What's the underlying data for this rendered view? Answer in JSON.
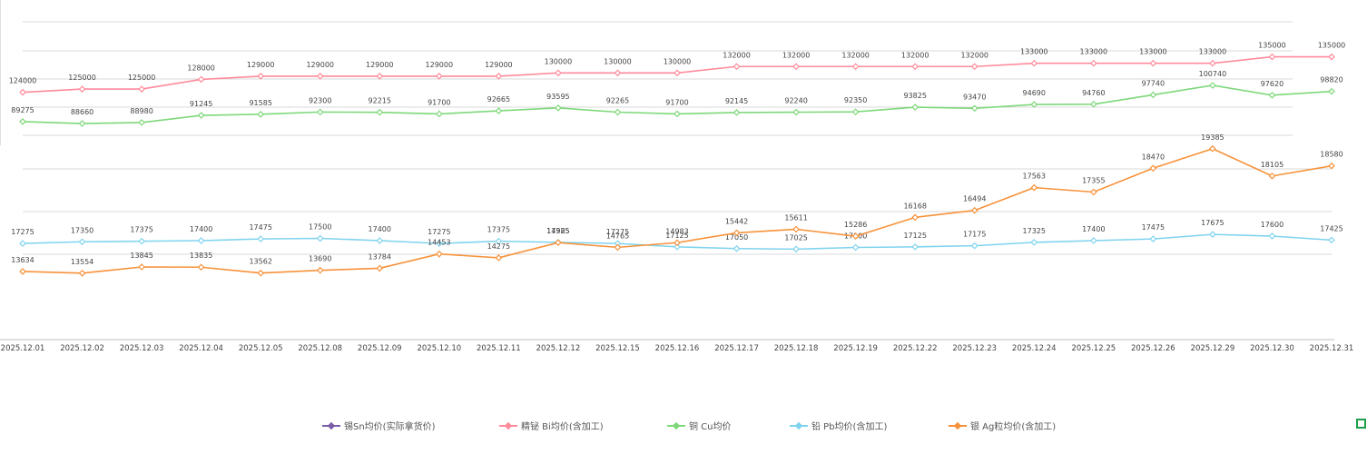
{
  "chart_data": {
    "type": "line",
    "categories": [
      "2025.12.01",
      "2025.12.02",
      "2025.12.03",
      "2025.12.04",
      "2025.12.05",
      "2025.12.08",
      "2025.12.09",
      "2025.12.10",
      "2025.12.11",
      "2025.12.12",
      "2025.12.15",
      "2025.12.16",
      "2025.12.17",
      "2025.12.18",
      "2025.12.19",
      "2025.12.22",
      "2025.12.23",
      "2025.12.24",
      "2025.12.25",
      "2025.12.26",
      "2025.12.29",
      "2025.12.30",
      "2025.12.31"
    ],
    "series": [
      {
        "name": "锡Sn均价(实际拿货价)",
        "color": "#7b5ea7",
        "values": [
          null,
          null,
          null,
          null,
          null,
          null,
          null,
          null,
          null,
          null,
          null,
          null,
          null,
          null,
          null,
          null,
          null,
          null,
          null,
          null,
          null,
          null,
          null
        ]
      },
      {
        "name": "精铋 Bi均价(含加工)",
        "color": "#ff8b9b",
        "ylim": [
          47000,
          147000
        ],
        "values": [
          124000,
          125000,
          125000,
          128000,
          129000,
          129000,
          129000,
          129000,
          129000,
          130000,
          130000,
          130000,
          132000,
          132000,
          132000,
          132000,
          132000,
          133000,
          133000,
          133000,
          133000,
          135000,
          135000
        ]
      },
      {
        "name": "铜 Cu均价",
        "color": "#7ed87a",
        "ylim": [
          20000,
          122000
        ],
        "values": [
          89275,
          88660,
          88980,
          91245,
          91585,
          92300,
          92215,
          91700,
          92665,
          93595,
          92265,
          91700,
          92145,
          92240,
          92350,
          93825,
          93470,
          94690,
          94760,
          97740,
          100740,
          97620,
          98820
        ]
      },
      {
        "name": "铅 Pb均价(含加工)",
        "color": "#7fd3ee",
        "ylim": [
          13000,
          27200
        ],
        "values": [
          17275,
          17350,
          17375,
          17400,
          17475,
          17500,
          17400,
          17275,
          17375,
          17325,
          17275,
          17125,
          17050,
          17025,
          17100,
          17125,
          17175,
          17325,
          17400,
          17475,
          17675,
          17600,
          17425
        ]
      },
      {
        "name": "银 Ag粒均价(含加工)",
        "color": "#f7923a",
        "ylim": [
          10400,
          25500
        ],
        "values": [
          13634,
          13554,
          13845,
          13835,
          13562,
          13690,
          13784,
          14453,
          14275,
          14985,
          14765,
          14983,
          15442,
          15611,
          15286,
          16168,
          16494,
          17563,
          17355,
          18470,
          19385,
          18105,
          18580
        ]
      }
    ]
  }
}
